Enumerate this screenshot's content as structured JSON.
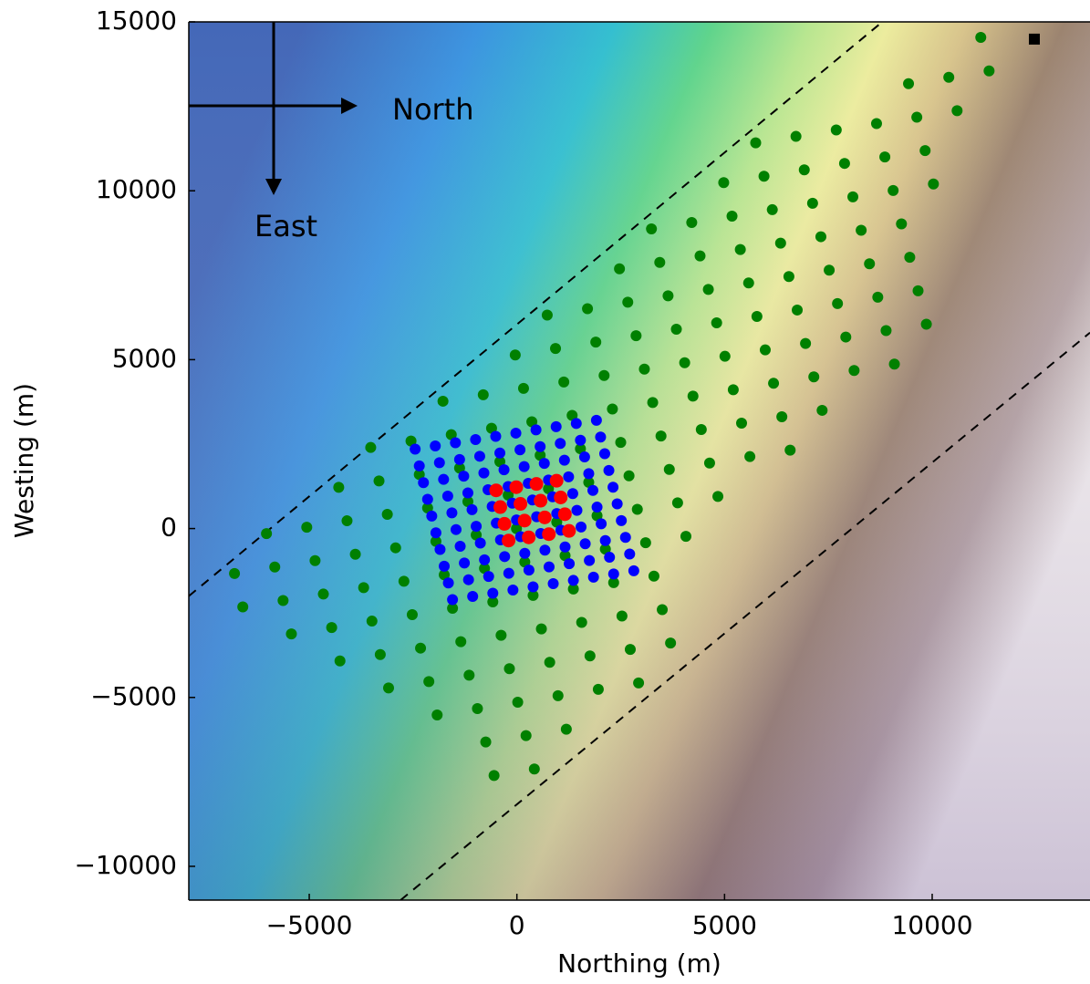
{
  "chart_data": {
    "type": "scatter",
    "xlabel": "Northing (m)",
    "ylabel": "Westing (m)",
    "annotations": [
      "North",
      "East"
    ],
    "xlim": [
      -7900,
      13800
    ],
    "ylim": [
      -11000,
      15000
    ],
    "xticks": [
      {
        "value": -5000,
        "label": "−5000"
      },
      0,
      5000,
      10000
    ],
    "yticks": [
      {
        "value": -10000,
        "label": "−10000"
      },
      {
        "value": -5000,
        "label": "−5000"
      },
      0,
      5000,
      10000,
      15000
    ],
    "lines": [
      {
        "color": "#000000",
        "linestyle": "dashed",
        "x": [
          -7900,
          8800
        ],
        "values": [
          -2000,
          15000
        ]
      },
      {
        "color": "#000000",
        "linestyle": "dashed",
        "x": [
          -2800,
          13800
        ],
        "values": [
          -11000,
          5800
        ]
      }
    ],
    "series": [
      {
        "color": "#008000",
        "marker": "circle",
        "x": [
          11170,
          11370,
          10400,
          9430,
          10600,
          9630,
          8660,
          7690,
          6720,
          5750,
          9830,
          8860,
          7890,
          6920,
          5950,
          4980,
          10030,
          9060,
          8090,
          7120,
          6150,
          5180,
          4210,
          3240,
          9260,
          8290,
          7320,
          6350,
          5380,
          4410,
          3440,
          2470,
          9460,
          8490,
          7520,
          6550,
          5580,
          4610,
          3640,
          2670,
          1700,
          730,
          9660,
          8690,
          7720,
          6750,
          5780,
          4810,
          3840,
          2870,
          1900,
          930,
          -40,
          9860,
          8890,
          7920,
          6950,
          5980,
          5010,
          4040,
          3070,
          2100,
          1130,
          160,
          -810,
          -1780,
          9090,
          8120,
          7150,
          6180,
          5210,
          4240,
          3270,
          2300,
          1330,
          360,
          -610,
          -1580,
          -2550,
          -3520,
          7350,
          6380,
          5410,
          4440,
          3470,
          2500,
          1530,
          560,
          -410,
          -1380,
          -2350,
          -3320,
          -4290,
          6580,
          5610,
          4640,
          3670,
          2700,
          1730,
          760,
          -210,
          -1180,
          -2150,
          -3120,
          -4090,
          -5060,
          -6030,
          4840,
          3870,
          2900,
          1930,
          960,
          -10,
          -980,
          -1950,
          -2920,
          -3890,
          -4860,
          -5830,
          -6800,
          4070,
          3100,
          2130,
          1160,
          190,
          -780,
          -1750,
          -2720,
          -3690,
          -4660,
          -5630,
          -6600,
          3300,
          2330,
          1360,
          390,
          -580,
          -1550,
          -2520,
          -3490,
          -4460,
          -5430,
          3500,
          2530,
          1560,
          590,
          -380,
          -1350,
          -2320,
          -3290,
          -4260,
          3700,
          2730,
          1760,
          790,
          -180,
          -1150,
          -2120,
          -3090,
          2930,
          1960,
          990,
          20,
          -950,
          -1920,
          1190,
          220,
          -750,
          420,
          -550
        ],
        "values": [
          14540,
          13550,
          13360,
          13170,
          12370,
          12180,
          11990,
          11800,
          11610,
          11420,
          11190,
          11000,
          10810,
          10620,
          10430,
          10240,
          10200,
          10010,
          9820,
          9630,
          9440,
          9250,
          9060,
          8870,
          9020,
          8830,
          8640,
          8450,
          8260,
          8070,
          7880,
          7690,
          8030,
          7840,
          7650,
          7460,
          7270,
          7080,
          6890,
          6700,
          6510,
          6320,
          7040,
          6850,
          6660,
          6470,
          6280,
          6090,
          5900,
          5710,
          5520,
          5330,
          5140,
          6050,
          5860,
          5670,
          5480,
          5290,
          5100,
          4910,
          4720,
          4530,
          4340,
          4150,
          3960,
          3770,
          4870,
          4680,
          4490,
          4300,
          4110,
          3920,
          3730,
          3540,
          3350,
          3160,
          2970,
          2780,
          2590,
          2400,
          3500,
          3310,
          3120,
          2930,
          2740,
          2550,
          2360,
          2170,
          1980,
          1790,
          1600,
          1410,
          1220,
          2320,
          2130,
          1940,
          1750,
          1560,
          1370,
          1180,
          990,
          800,
          610,
          420,
          230,
          40,
          -150,
          950,
          760,
          570,
          380,
          190,
          0,
          -190,
          -380,
          -570,
          -760,
          -950,
          -1140,
          -1330,
          -230,
          -420,
          -610,
          -800,
          -990,
          -1180,
          -1370,
          -1560,
          -1750,
          -1940,
          -2130,
          -2320,
          -1410,
          -1600,
          -1790,
          -1980,
          -2170,
          -2360,
          -2550,
          -2740,
          -2930,
          -3120,
          -2400,
          -2590,
          -2780,
          -2970,
          -3160,
          -3350,
          -3540,
          -3730,
          -3920,
          -3390,
          -3580,
          -3770,
          -3960,
          -4150,
          -4340,
          -4530,
          -4720,
          -4570,
          -4760,
          -4950,
          -5140,
          -5330,
          -5520,
          -5940,
          -6130,
          -6320,
          -7120,
          -7310
        ]
      },
      {
        "color": "#0000ff",
        "marker": "circle",
        "x": [
          -2450,
          -1965,
          -1480,
          -995,
          -510,
          -25,
          460,
          945,
          1430,
          1915,
          -2350,
          -1865,
          -1380,
          -895,
          -410,
          75,
          560,
          1045,
          1530,
          2015,
          -2250,
          -1765,
          -1280,
          -795,
          -310,
          175,
          660,
          1145,
          1630,
          2115,
          -2150,
          -1665,
          -1180,
          -695,
          -210,
          275,
          760,
          1245,
          1730,
          2215,
          -2050,
          -1565,
          -1080,
          -595,
          -110,
          375,
          860,
          1345,
          1830,
          2315,
          -1950,
          -1465,
          -980,
          -495,
          -10,
          475,
          960,
          1445,
          1930,
          2415,
          -1850,
          -1365,
          -880,
          -395,
          90,
          575,
          1060,
          1545,
          2030,
          2515,
          -1750,
          -1265,
          -780,
          -295,
          190,
          675,
          1160,
          1645,
          2130,
          2615,
          -1650,
          -1165,
          -680,
          -195,
          290,
          775,
          1260,
          1745,
          2230,
          2715,
          -1550,
          -1065,
          -580,
          -95,
          390,
          875,
          1360,
          1845,
          2330,
          2815
        ],
        "values": [
          2350,
          2445,
          2540,
          2635,
          2730,
          2825,
          2920,
          3015,
          3110,
          3205,
          1855,
          1950,
          2045,
          2140,
          2235,
          2330,
          2425,
          2520,
          2615,
          2710,
          1360,
          1455,
          1550,
          1645,
          1740,
          1835,
          1930,
          2025,
          2120,
          2215,
          865,
          960,
          1055,
          1150,
          1245,
          1340,
          1435,
          1530,
          1625,
          1720,
          370,
          465,
          560,
          655,
          750,
          845,
          940,
          1035,
          1130,
          1225,
          -125,
          -30,
          65,
          160,
          255,
          350,
          445,
          540,
          635,
          730,
          -620,
          -525,
          -430,
          -335,
          -240,
          -145,
          -50,
          45,
          140,
          235,
          -1115,
          -1020,
          -925,
          -830,
          -735,
          -640,
          -545,
          -450,
          -355,
          -260,
          -1610,
          -1515,
          -1420,
          -1325,
          -1230,
          -1135,
          -1040,
          -945,
          -850,
          -755,
          -2105,
          -2010,
          -1915,
          -1820,
          -1725,
          -1630,
          -1535,
          -1440,
          -1345,
          -1250
        ]
      },
      {
        "color": "#ff0000",
        "marker": "circle",
        "x": [
          -500,
          -15,
          470,
          955,
          -400,
          85,
          570,
          1055,
          -300,
          185,
          670,
          1155,
          -200,
          285,
          770,
          1255
        ],
        "values": [
          1130,
          1225,
          1320,
          1415,
          635,
          730,
          825,
          920,
          140,
          235,
          330,
          425,
          -355,
          -260,
          -165,
          -70
        ]
      },
      {
        "color": "#000000",
        "marker": "square",
        "x": [
          12460
        ],
        "values": [
          14490
        ]
      }
    ]
  }
}
